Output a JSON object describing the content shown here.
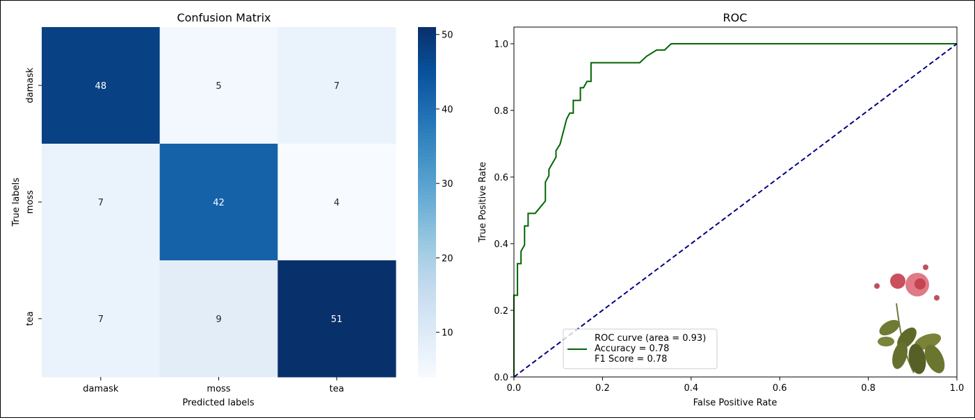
{
  "chart_data": [
    {
      "type": "heatmap",
      "title": "Confusion Matrix",
      "xlabel": "Predicted labels",
      "ylabel": "True labels",
      "x_categories": [
        "damask",
        "moss",
        "tea"
      ],
      "y_categories": [
        "damask",
        "moss",
        "tea"
      ],
      "values": [
        [
          48,
          5,
          7
        ],
        [
          7,
          42,
          4
        ],
        [
          7,
          9,
          51
        ]
      ],
      "colormap": "Blues",
      "colorbar": {
        "range": [
          4,
          51
        ],
        "ticks": [
          10,
          20,
          30,
          40,
          50
        ]
      }
    },
    {
      "type": "line",
      "title": "ROC",
      "xlabel": "False Positive Rate",
      "ylabel": "True Positive Rate",
      "xlim": [
        0.0,
        1.0
      ],
      "ylim": [
        0.0,
        1.05
      ],
      "xticks": [
        "0.0",
        "0.2",
        "0.4",
        "0.6",
        "0.8",
        "1.0"
      ],
      "yticks": [
        "0.0",
        "0.2",
        "0.4",
        "0.6",
        "0.8",
        "1.0"
      ],
      "legend_placement": "lower-left",
      "legend": [
        "ROC curve (area = 0.93)",
        "Accuracy = 0.78",
        "F1 Score = 0.78"
      ],
      "series": [
        {
          "name": "ROC curve (area = 0.93)",
          "color": "#006400",
          "style": "solid",
          "x": [
            0,
            0,
            0.008,
            0.008,
            0.016,
            0.016,
            0.024,
            0.024,
            0.032,
            0.032,
            0.048,
            0.071,
            0.071,
            0.079,
            0.079,
            0.095,
            0.095,
            0.104,
            0.119,
            0.126,
            0.134,
            0.134,
            0.15,
            0.15,
            0.157,
            0.165,
            0.174,
            0.174,
            0.284,
            0.299,
            0.322,
            0.34,
            0.355,
            1.0
          ],
          "y": [
            0,
            0.245,
            0.245,
            0.34,
            0.34,
            0.377,
            0.396,
            0.453,
            0.453,
            0.491,
            0.491,
            0.528,
            0.585,
            0.604,
            0.623,
            0.66,
            0.679,
            0.698,
            0.774,
            0.792,
            0.792,
            0.83,
            0.83,
            0.868,
            0.868,
            0.887,
            0.887,
            0.943,
            0.943,
            0.962,
            0.981,
            0.981,
            1.0,
            1.0
          ]
        },
        {
          "color": "#000080",
          "style": "dashed",
          "x": [
            0,
            1
          ],
          "y": [
            0,
            1
          ]
        }
      ]
    }
  ]
}
